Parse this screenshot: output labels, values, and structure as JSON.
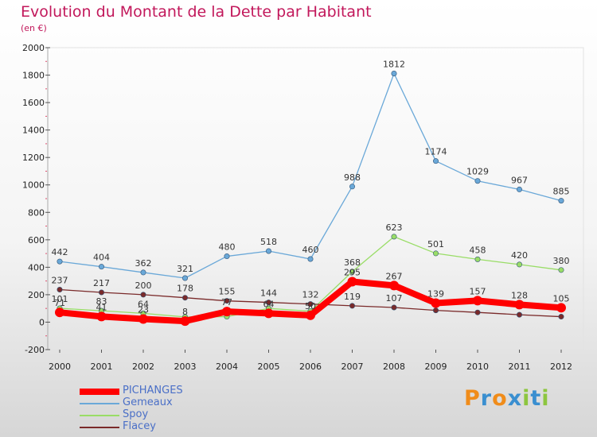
{
  "header": {
    "title": "Evolution du Montant de la Dette par Habitant",
    "subtitle": "(en €)"
  },
  "logo": {
    "text": "Proxiti",
    "colors": [
      "#f08c1a",
      "#3a8fd0",
      "#f08c1a",
      "#3a8fd0",
      "#8dc63f",
      "#3a8fd0",
      "#8dc63f"
    ]
  },
  "chart_data": {
    "type": "line",
    "title": "Evolution du Montant de la Dette par Habitant",
    "subtitle": "(en €)",
    "x": [
      "2000",
      "2001",
      "2002",
      "2003",
      "2004",
      "2005",
      "2006",
      "2007",
      "2008",
      "2009",
      "2010",
      "2011",
      "2012"
    ],
    "ylim": [
      -200,
      2000
    ],
    "yticks": [
      "-200",
      "0",
      "200",
      "400",
      "600",
      "800",
      "1000",
      "1200",
      "1400",
      "1600",
      "1800",
      "2000"
    ],
    "grid": false,
    "legend_position": "bottom-left",
    "series": [
      {
        "name": "PICHANGES",
        "color": "#ff0000",
        "labels_shown": true,
        "values": [
          71,
          41,
          23,
          8,
          77,
          64,
          50,
          295,
          267,
          139,
          157,
          128,
          105
        ],
        "labels": [
          "71",
          "41",
          "23",
          "8",
          "77",
          "64",
          "50",
          "295",
          "267",
          "139",
          "157",
          "128",
          "105"
        ]
      },
      {
        "name": "Gemeaux",
        "color": "#6aa8d8",
        "values": [
          442,
          404,
          362,
          321,
          480,
          518,
          460,
          988,
          1812,
          1174,
          1029,
          967,
          885
        ],
        "labels": [
          "442",
          "404",
          "362",
          "321",
          "480",
          "518",
          "460",
          "988",
          "1812",
          "1174",
          "1029",
          "967",
          "885"
        ]
      },
      {
        "name": "Spoy",
        "color": "#99dd66",
        "values": [
          101,
          83,
          64,
          38,
          40,
          100,
          80,
          368,
          623,
          501,
          458,
          420,
          380
        ],
        "labels": [
          "101",
          "83",
          "64",
          "",
          "",
          "",
          "",
          "368",
          "623",
          "501",
          "458",
          "420",
          "380"
        ]
      },
      {
        "name": "Flacey",
        "color": "#7a2a2a",
        "values": [
          237,
          217,
          200,
          178,
          155,
          144,
          132,
          119,
          107,
          86,
          71,
          54,
          40
        ],
        "labels": [
          "237",
          "217",
          "200",
          "178",
          "155",
          "144",
          "132",
          "119",
          "107",
          "",
          "",
          "",
          ""
        ]
      }
    ]
  }
}
